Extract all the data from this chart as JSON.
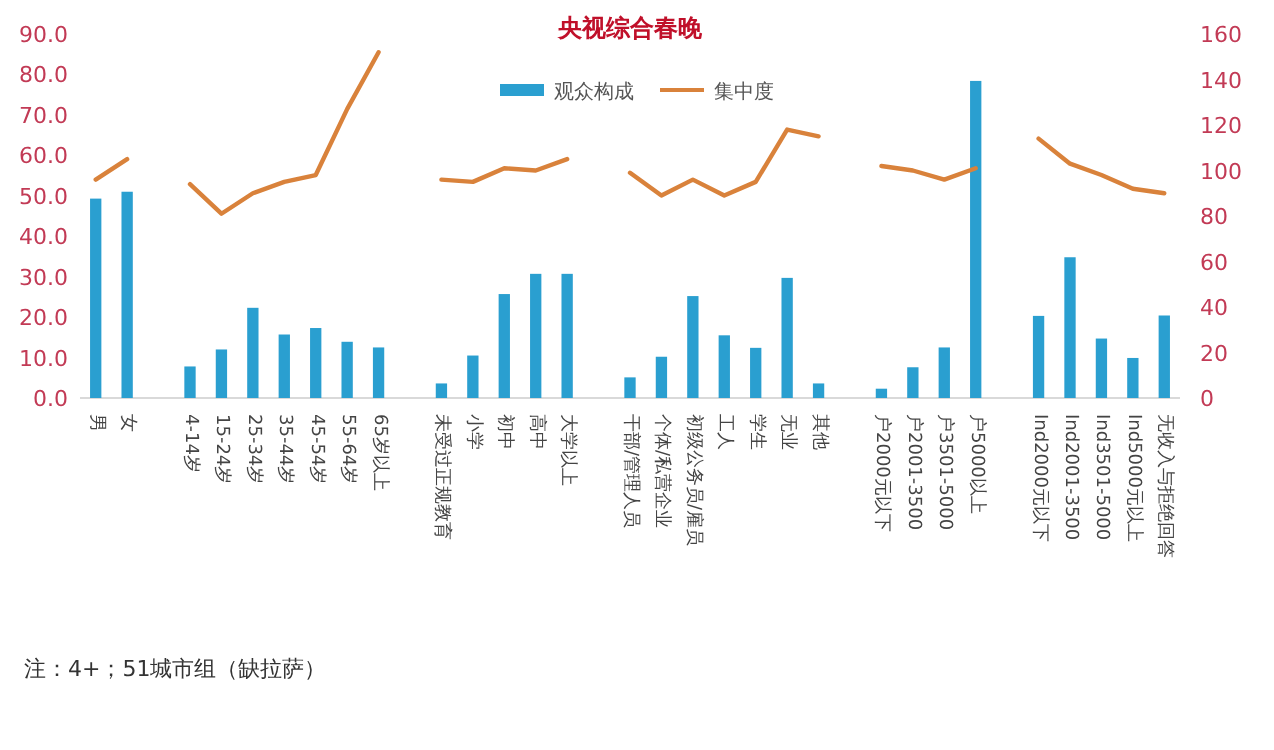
{
  "chart_data": {
    "type": "bar",
    "title": "央视综合春晚",
    "categories": [
      "男",
      "女",
      null,
      "4-14岁",
      "15-24岁",
      "25-34岁",
      "35-44岁",
      "45-54岁",
      "55-64岁",
      "65岁以上",
      null,
      "未受过正规教育",
      "小学",
      "初中",
      "高中",
      "大学以上",
      null,
      "干部/管理人员",
      "个体/私营企业",
      "初级公务员/雇员",
      "工人",
      "学生",
      "无业",
      "其他",
      null,
      "户2000元以下",
      "户2001-3500",
      "户3501-5000",
      "户5000以上",
      null,
      "Ind2000元以下",
      "Ind2001-3500",
      "Ind3501-5000",
      "Ind5000元以上",
      "无收入与拒绝回答"
    ],
    "series": [
      {
        "name": "观众构成",
        "color": "#2a9fd0",
        "values": [
          49.3,
          51,
          null,
          7.8,
          12,
          22.3,
          15.7,
          17.3,
          13.9,
          12.5,
          null,
          3.6,
          10.5,
          25.7,
          30.7,
          30.7,
          null,
          5.1,
          10.2,
          25.2,
          15.5,
          12.4,
          29.7,
          3.6,
          null,
          2.3,
          7.6,
          12.5,
          78.4,
          null,
          20.3,
          34.8,
          14.7,
          9.9,
          20.4
        ]
      },
      {
        "name": "集中度",
        "type": "line",
        "axis": "y2",
        "color": "#d9823b",
        "values": [
          96,
          105,
          null,
          94,
          81,
          90,
          95,
          98,
          127,
          152,
          null,
          96,
          95,
          101,
          100,
          105,
          null,
          99,
          89,
          96,
          89,
          95,
          118,
          115,
          null,
          102,
          100,
          96,
          101,
          null,
          114,
          103,
          98,
          92,
          90
        ]
      }
    ],
    "ylim": [
      0,
      90
    ],
    "yticks": [
      {
        "value": 0,
        "label": "0.0"
      },
      {
        "value": 10,
        "label": "10.0"
      },
      {
        "value": 20,
        "label": "20.0"
      },
      {
        "value": 30,
        "label": "30.0"
      },
      {
        "value": 40,
        "label": "40.0"
      },
      {
        "value": 50,
        "label": "50.0"
      },
      {
        "value": 60,
        "label": "60.0"
      },
      {
        "value": 70,
        "label": "70.0"
      },
      {
        "value": 80,
        "label": "80.0"
      },
      {
        "value": 90,
        "label": "90.0"
      }
    ],
    "y2lim": [
      0,
      160
    ],
    "y2ticks": [
      0,
      20,
      40,
      60,
      80,
      100,
      120,
      140,
      160
    ],
    "legend": "top",
    "annotations": [
      "注：4+；51城市组（缺拉萨）"
    ]
  }
}
